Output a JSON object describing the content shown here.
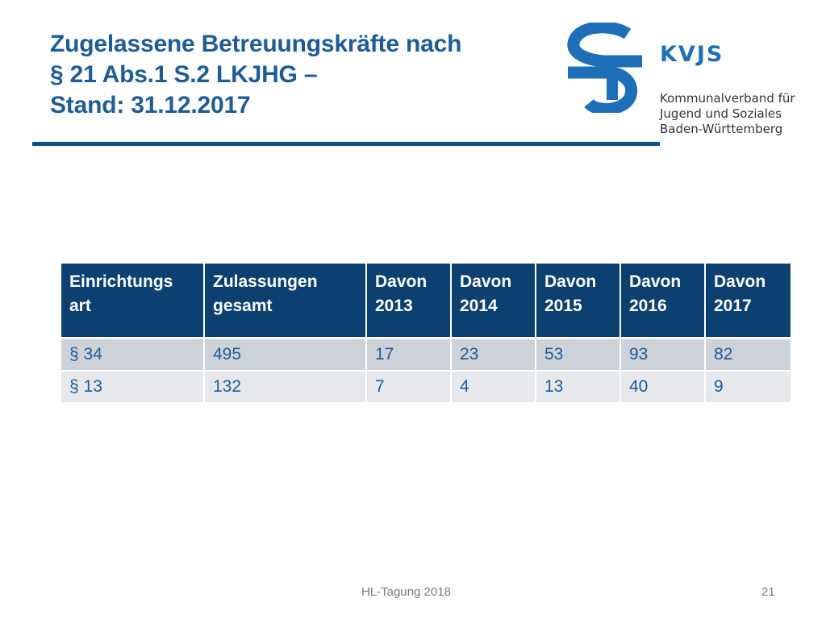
{
  "slide": {
    "title_lines": [
      "Zugelassene Betreuungskräfte nach",
      "§ 21 Abs.1 S.2 LKJHG –",
      "Stand: 31.12.2017"
    ]
  },
  "logo": {
    "abbreviation": "KVJS",
    "name_lines": [
      "Kommunalverband für",
      "Jugend und Soziales",
      "Baden-Württemberg"
    ],
    "color": "#1f6fb8"
  },
  "table": {
    "headers": [
      "Einrichtungs art",
      "Zulassungen gesamt",
      "Davon 2013",
      "Davon 2014",
      "Davon 2015",
      "Davon 2016",
      "Davon 2017"
    ],
    "rows": [
      [
        "§ 34",
        "495",
        "17",
        "23",
        "53",
        "93",
        "82"
      ],
      [
        "§ 13",
        "132",
        "7",
        "4",
        "13",
        "40",
        "9"
      ]
    ]
  },
  "footer": {
    "event": "HL-Tagung 2018",
    "page_number": "21"
  },
  "colors": {
    "title": "#1f5c96",
    "header_bg": "#0c4071",
    "row_dark": "#cdd1d8",
    "row_light": "#e6e8ec"
  }
}
